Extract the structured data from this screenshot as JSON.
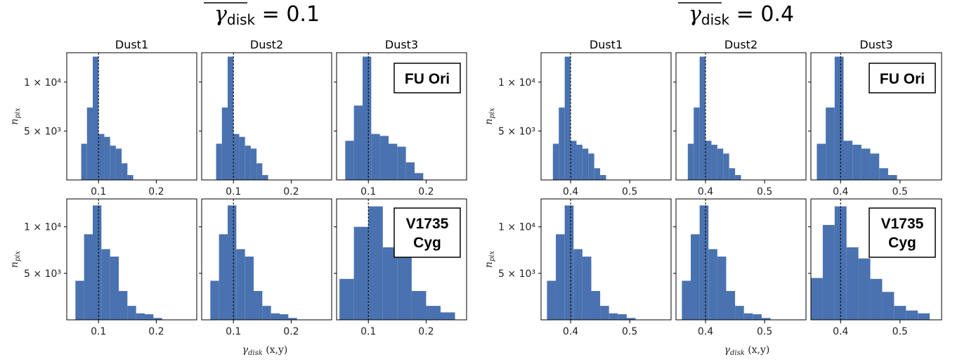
{
  "figure": {
    "panel_groups": [
      {
        "title_symbol": "γ",
        "title_sub": "disk",
        "title_value": "= 0.1"
      },
      {
        "title_symbol": "γ",
        "title_sub": "disk",
        "title_value": "= 0.4"
      }
    ],
    "column_titles": [
      "Dust1",
      "Dust2",
      "Dust3"
    ],
    "row_labels": [
      "FU Ori",
      "V1735 Cyg"
    ],
    "ylabel": "n",
    "ylabel_sub": "pix",
    "xlabel": "γ",
    "xlabel_sub": "disk",
    "xlabel_suffix": "(x,y)",
    "ytick_labels": [
      "1 × 10⁴",
      "5 × 10³"
    ],
    "bar_color": "#4a72b0"
  },
  "chart_data": [
    {
      "type": "bar",
      "group": "γdisk = 0.1",
      "star": "FU Ori",
      "panel": "Dust1",
      "bin_edges": [
        0.07,
        0.08,
        0.09,
        0.1,
        0.11,
        0.12,
        0.13,
        0.14,
        0.15,
        0.16
      ],
      "values": [
        3700,
        7400,
        12600,
        4700,
        4400,
        3500,
        3200,
        1700,
        500
      ],
      "vline": 0.1,
      "xticks": [
        0.1,
        0.2
      ],
      "xlim": [
        0.045,
        0.27
      ],
      "ylim": [
        0,
        13000
      ]
    },
    {
      "type": "bar",
      "group": "γdisk = 0.1",
      "star": "FU Ori",
      "panel": "Dust2",
      "bin_edges": [
        0.07,
        0.08,
        0.09,
        0.1,
        0.11,
        0.12,
        0.13,
        0.14,
        0.15,
        0.16
      ],
      "values": [
        3700,
        7400,
        12600,
        4700,
        4400,
        3500,
        3200,
        1700,
        500
      ],
      "vline": 0.1,
      "xticks": [
        0.1,
        0.2
      ],
      "xlim": [
        0.045,
        0.27
      ],
      "ylim": [
        0,
        13000
      ]
    },
    {
      "type": "bar",
      "group": "γdisk = 0.1",
      "star": "FU Ori",
      "panel": "Dust3",
      "bin_edges": [
        0.06,
        0.075,
        0.09,
        0.105,
        0.12,
        0.135,
        0.15,
        0.165,
        0.18,
        0.195
      ],
      "values": [
        4000,
        7600,
        12600,
        4700,
        4500,
        3700,
        3400,
        1800,
        700
      ],
      "vline": 0.1,
      "xticks": [
        0.1,
        0.2
      ],
      "xlim": [
        0.045,
        0.27
      ],
      "ylim": [
        0,
        13000
      ]
    },
    {
      "type": "bar",
      "group": "γdisk = 0.1",
      "star": "V1735 Cyg",
      "panel": "Dust1",
      "bin_edges": [
        0.06,
        0.075,
        0.09,
        0.105,
        0.12,
        0.135,
        0.15,
        0.165,
        0.18,
        0.195,
        0.21
      ],
      "values": [
        4200,
        9200,
        12300,
        7600,
        6800,
        3100,
        1500,
        700,
        600,
        200
      ],
      "vline": 0.1,
      "xticks": [
        0.1,
        0.2
      ],
      "xlim": [
        0.045,
        0.27
      ],
      "ylim": [
        0,
        13000
      ]
    },
    {
      "type": "bar",
      "group": "γdisk = 0.1",
      "star": "V1735 Cyg",
      "panel": "Dust2",
      "bin_edges": [
        0.06,
        0.075,
        0.09,
        0.105,
        0.12,
        0.135,
        0.15,
        0.165,
        0.18,
        0.195,
        0.21
      ],
      "values": [
        4200,
        9200,
        12300,
        7600,
        6800,
        3100,
        1500,
        700,
        600,
        200
      ],
      "vline": 0.1,
      "xticks": [
        0.1,
        0.2
      ],
      "xlim": [
        0.045,
        0.27
      ],
      "ylim": [
        0,
        13000
      ]
    },
    {
      "type": "bar",
      "group": "γdisk = 0.1",
      "star": "V1735 Cyg",
      "panel": "Dust3",
      "bin_edges": [
        0.05,
        0.075,
        0.1,
        0.125,
        0.15,
        0.175,
        0.2,
        0.225,
        0.25
      ],
      "values": [
        4400,
        10000,
        12200,
        7800,
        6700,
        3100,
        1500,
        800
      ],
      "vline": 0.1,
      "xticks": [
        0.1,
        0.2
      ],
      "xlim": [
        0.045,
        0.27
      ],
      "ylim": [
        0,
        13000
      ]
    },
    {
      "type": "bar",
      "group": "γdisk = 0.4",
      "star": "FU Ori",
      "panel": "Dust1",
      "bin_edges": [
        0.37,
        0.38,
        0.39,
        0.4,
        0.41,
        0.42,
        0.43,
        0.44,
        0.45,
        0.46
      ],
      "values": [
        3700,
        7400,
        12600,
        4000,
        3600,
        3200,
        2700,
        1200,
        500
      ],
      "vline": 0.4,
      "xticks": [
        0.4,
        0.5
      ],
      "xlim": [
        0.35,
        0.57
      ],
      "ylim": [
        0,
        13000
      ]
    },
    {
      "type": "bar",
      "group": "γdisk = 0.4",
      "star": "FU Ori",
      "panel": "Dust2",
      "bin_edges": [
        0.37,
        0.38,
        0.39,
        0.4,
        0.41,
        0.42,
        0.43,
        0.44,
        0.45,
        0.46
      ],
      "values": [
        3700,
        7400,
        12600,
        4000,
        3600,
        3200,
        2700,
        1200,
        500
      ],
      "vline": 0.4,
      "xticks": [
        0.4,
        0.5
      ],
      "xlim": [
        0.35,
        0.57
      ],
      "ylim": [
        0,
        13000
      ]
    },
    {
      "type": "bar",
      "group": "γdisk = 0.4",
      "star": "FU Ori",
      "panel": "Dust3",
      "bin_edges": [
        0.36,
        0.375,
        0.39,
        0.405,
        0.42,
        0.435,
        0.45,
        0.465,
        0.48,
        0.495
      ],
      "values": [
        3700,
        7400,
        12600,
        4000,
        3600,
        3200,
        2700,
        1200,
        500
      ],
      "vline": 0.4,
      "xticks": [
        0.4,
        0.5
      ],
      "xlim": [
        0.35,
        0.57
      ],
      "ylim": [
        0,
        13000
      ]
    },
    {
      "type": "bar",
      "group": "γdisk = 0.4",
      "star": "V1735 Cyg",
      "panel": "Dust1",
      "bin_edges": [
        0.36,
        0.375,
        0.39,
        0.405,
        0.42,
        0.435,
        0.45,
        0.465,
        0.48,
        0.495,
        0.51
      ],
      "values": [
        4200,
        9200,
        12300,
        7600,
        6800,
        3100,
        1500,
        700,
        600,
        200
      ],
      "vline": 0.4,
      "xticks": [
        0.4,
        0.5
      ],
      "xlim": [
        0.35,
        0.57
      ],
      "ylim": [
        0,
        13000
      ]
    },
    {
      "type": "bar",
      "group": "γdisk = 0.4",
      "star": "V1735 Cyg",
      "panel": "Dust2",
      "bin_edges": [
        0.36,
        0.375,
        0.39,
        0.405,
        0.42,
        0.435,
        0.45,
        0.465,
        0.48,
        0.495,
        0.51
      ],
      "values": [
        4200,
        9200,
        12300,
        7600,
        6800,
        3100,
        1500,
        700,
        600,
        200
      ],
      "vline": 0.4,
      "xticks": [
        0.4,
        0.5
      ],
      "xlim": [
        0.35,
        0.57
      ],
      "ylim": [
        0,
        13000
      ]
    },
    {
      "type": "bar",
      "group": "γdisk = 0.4",
      "star": "V1735 Cyg",
      "panel": "Dust3",
      "bin_edges": [
        0.35,
        0.37,
        0.39,
        0.41,
        0.43,
        0.45,
        0.47,
        0.49,
        0.51,
        0.53,
        0.55
      ],
      "values": [
        4500,
        10200,
        12200,
        7800,
        6600,
        4400,
        3000,
        1500,
        1000,
        700
      ],
      "vline": 0.4,
      "xticks": [
        0.4,
        0.5
      ],
      "xlim": [
        0.35,
        0.57
      ],
      "ylim": [
        0,
        13000
      ]
    }
  ]
}
